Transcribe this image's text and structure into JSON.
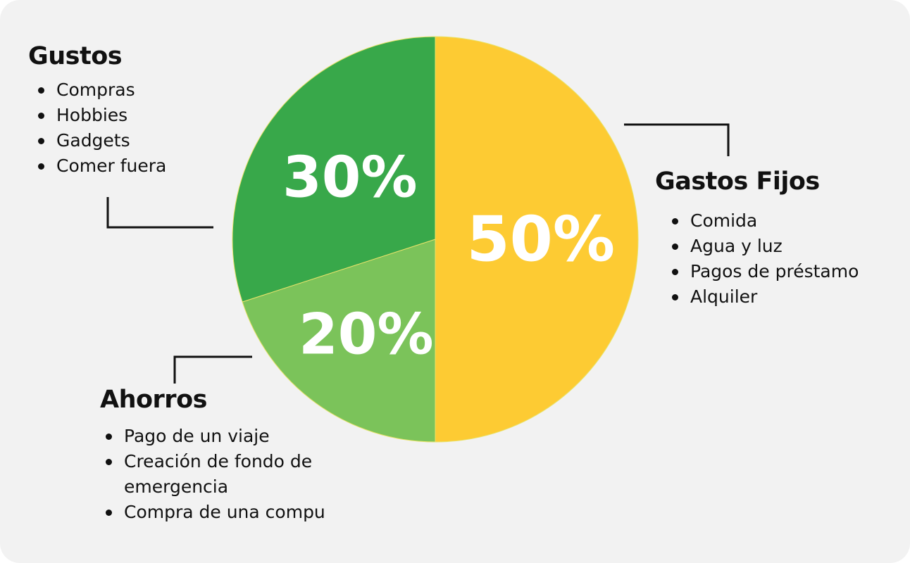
{
  "chart_data": {
    "type": "pie",
    "slices": [
      {
        "name": "Gastos Fijos",
        "value": 50,
        "label": "50%",
        "color": "#FDCB33",
        "items": [
          "Comida",
          "Agua y luz",
          "Pagos de préstamo",
          "Alquiler"
        ]
      },
      {
        "name": "Ahorros",
        "value": 20,
        "label": "20%",
        "color": "#7BC35A",
        "items": [
          "Pago de un viaje",
          "Creación de fondo de emergencia",
          "Compra de una compu"
        ]
      },
      {
        "name": "Gustos",
        "value": 30,
        "label": "30%",
        "color": "#38A84A",
        "items": [
          "Compras",
          "Hobbies",
          "Gadgets",
          "Comer fuera"
        ]
      }
    ],
    "start": "top",
    "direction": "clockwise",
    "legend": "callouts"
  }
}
